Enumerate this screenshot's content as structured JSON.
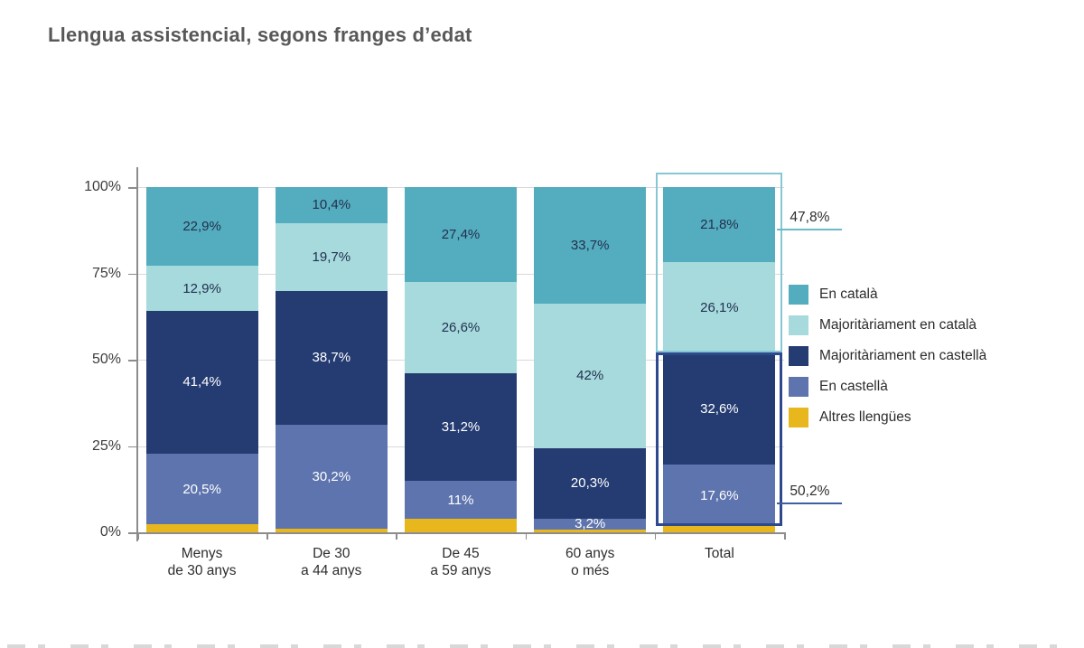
{
  "page": {
    "title": "Llengua assistencial, segons franges d’edat"
  },
  "chart_data": {
    "type": "bar",
    "stacked": true,
    "title": "Llengua assistencial, segons franges d’edat",
    "categories": [
      {
        "lines": [
          "Menys",
          "de 30 anys"
        ]
      },
      {
        "lines": [
          "De 30",
          "a 44 anys"
        ]
      },
      {
        "lines": [
          "De 45",
          "a 59 anys"
        ]
      },
      {
        "lines": [
          "60 anys",
          "o més"
        ]
      },
      {
        "lines": [
          "Total"
        ]
      }
    ],
    "series": [
      {
        "name": "En català",
        "color": "#54adbe",
        "label_color": "#23304f",
        "values": [
          22.9,
          10.4,
          27.4,
          33.7,
          21.8
        ],
        "labels": [
          "22,9%",
          "10,4%",
          "27,4%",
          "33,7%",
          "21,8%"
        ]
      },
      {
        "name": "Majoritàriament en català",
        "color": "#a6dadd",
        "label_color": "#23304f",
        "values": [
          12.9,
          19.7,
          26.6,
          42,
          26.1
        ],
        "labels": [
          "12,9%",
          "19,7%",
          "26,6%",
          "42%",
          "26,1%"
        ]
      },
      {
        "name": "Majoritàriament en castellà",
        "color": "#253c72",
        "label_color": "#ffffff",
        "values": [
          41.4,
          38.7,
          31.2,
          20.3,
          32.6
        ],
        "labels": [
          "41,4%",
          "38,7%",
          "31,2%",
          "20,3%",
          "32,6%"
        ]
      },
      {
        "name": "En castellà",
        "color": "#5e74ae",
        "label_color": "#ffffff",
        "values": [
          20.5,
          30.2,
          11,
          3.2,
          17.6
        ],
        "labels": [
          "20,5%",
          "30,2%",
          "11%",
          "3,2%",
          "17,6%"
        ]
      },
      {
        "name": "Altres llengües",
        "color": "#e8b71e",
        "label_color": "#ffffff",
        "values": [
          2.3,
          1.0,
          3.8,
          0.8,
          1.9
        ],
        "labels": [
          "",
          "",
          "",
          "",
          ""
        ]
      }
    ],
    "y_ticks": [
      {
        "label": "0%",
        "value": 0
      },
      {
        "label": "25%",
        "value": 25
      },
      {
        "label": "50%",
        "value": 50
      },
      {
        "label": "75%",
        "value": 75
      },
      {
        "label": "100%",
        "value": 100
      }
    ],
    "ylim": [
      0,
      100
    ],
    "grid": true,
    "legend_position": "right",
    "highlights": [
      {
        "target": "Total",
        "segments": [
          "En català",
          "Majoritàriament en català"
        ],
        "box_color": "#87c7d5",
        "annotation": "47,8%",
        "line_color": "#6fbac8"
      },
      {
        "target": "Total",
        "segments": [
          "Majoritàriament en castellà",
          "En castellà"
        ],
        "box_color": "#2e4a8e",
        "annotation": "50,2%",
        "line_color": "#3f5fa0"
      }
    ]
  }
}
